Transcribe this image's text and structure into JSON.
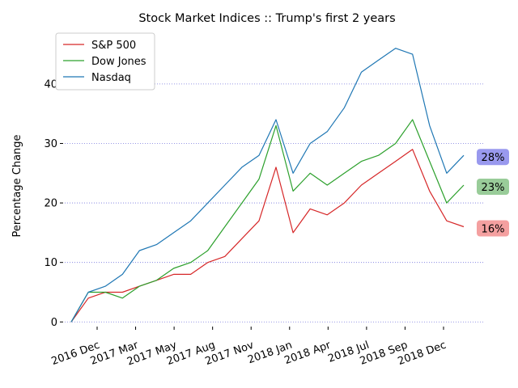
{
  "chart_data": {
    "type": "line",
    "title": "Stock Market Indices :: Trump's first 2 years",
    "xlabel": "",
    "ylabel": "Percentage Change",
    "ylim": [
      -2,
      48
    ],
    "yticks": [
      0,
      10,
      20,
      30,
      40
    ],
    "grid": "horizontal dotted",
    "legend_position": "top-left",
    "x_tick_labels": [
      "2016 Dec",
      "2017 Mar",
      "2017 May",
      "2017 Aug",
      "2017 Nov",
      "2018 Jan",
      "2018 Apr",
      "2018 Jul",
      "2018 Sep",
      "2018 Dec"
    ],
    "x": [
      "2016-11",
      "2017-01",
      "2017-02",
      "2017-03",
      "2017-04",
      "2017-05",
      "2017-06",
      "2017-07",
      "2017-08",
      "2017-09",
      "2017-10",
      "2017-11",
      "2018-01",
      "2018-02",
      "2018-03",
      "2018-04",
      "2018-05",
      "2018-06",
      "2018-07",
      "2018-08",
      "2018-09",
      "2018-10",
      "2018-11",
      "2018-12"
    ],
    "series": [
      {
        "name": "S&P 500",
        "color": "#d62728",
        "values": [
          0,
          4,
          5,
          5,
          6,
          7,
          8,
          8,
          10,
          11,
          14,
          17,
          26,
          15,
          19,
          18,
          20,
          23,
          25,
          27,
          29,
          22,
          17,
          16
        ],
        "end_label": "16%",
        "end_badge_color": "#f4a0a0"
      },
      {
        "name": "Dow Jones",
        "color": "#2ca02c",
        "values": [
          0,
          5,
          5,
          4,
          6,
          7,
          9,
          10,
          12,
          16,
          20,
          24,
          33,
          22,
          25,
          23,
          25,
          27,
          28,
          30,
          34,
          27,
          20,
          23
        ],
        "end_label": "23%",
        "end_badge_color": "#99cc99"
      },
      {
        "name": "Nasdaq",
        "color": "#1f77b4",
        "values": [
          0,
          5,
          6,
          8,
          12,
          13,
          15,
          17,
          20,
          23,
          26,
          28,
          34,
          25,
          30,
          32,
          36,
          42,
          44,
          46,
          45,
          33,
          25,
          28
        ],
        "end_label": "28%",
        "end_badge_color": "#9999ee"
      }
    ]
  }
}
